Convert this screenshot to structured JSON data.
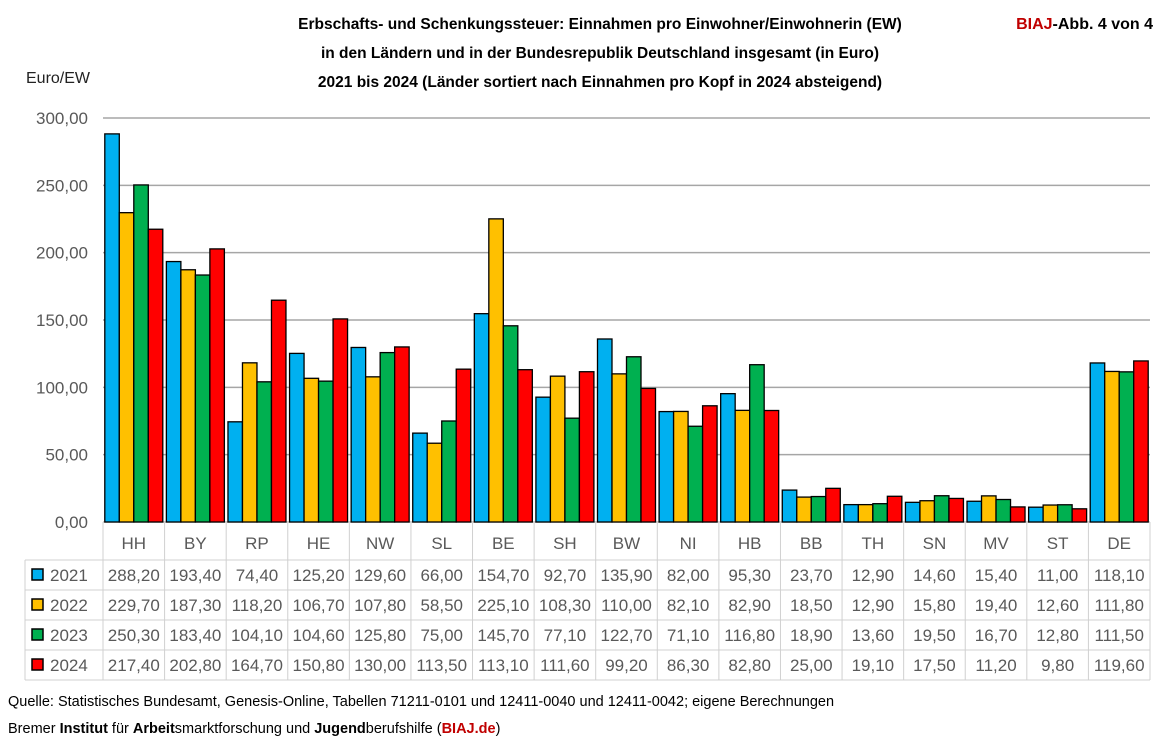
{
  "badge": {
    "brand": "BIAJ",
    "rest": "-Abb. 4 von 4"
  },
  "chart_data": {
    "type": "bar",
    "title": [
      "Erbschafts- und Schenkungssteuer: Einnahmen pro Einwohner/Einwohnerin (EW)",
      "in den Ländern und in der Bundesrepublik Deutschland insgesamt (in Euro)",
      "2021 bis 2024 (Länder sortiert nach Einnahmen pro Kopf in 2024 absteigend)"
    ],
    "ylabel": "Euro/EW",
    "ylim": [
      0,
      300
    ],
    "yticks": [
      "0,00",
      "50,00",
      "100,00",
      "150,00",
      "200,00",
      "250,00",
      "300,00"
    ],
    "grid": true,
    "legend": "data-table",
    "categories": [
      "HH",
      "BY",
      "RP",
      "HE",
      "NW",
      "SL",
      "BE",
      "SH",
      "BW",
      "NI",
      "HB",
      "BB",
      "TH",
      "SN",
      "MV",
      "ST",
      "DE"
    ],
    "series": [
      {
        "name": "2021",
        "color": "#00B0F0",
        "values": [
          288.2,
          193.4,
          74.4,
          125.2,
          129.6,
          66.0,
          154.7,
          92.7,
          135.9,
          82.0,
          95.3,
          23.7,
          12.9,
          14.6,
          15.4,
          11.0,
          118.1
        ]
      },
      {
        "name": "2022",
        "color": "#FFC000",
        "values": [
          229.7,
          187.3,
          118.2,
          106.7,
          107.8,
          58.5,
          225.1,
          108.3,
          110.0,
          82.1,
          82.9,
          18.5,
          12.9,
          15.8,
          19.4,
          12.6,
          111.8
        ]
      },
      {
        "name": "2023",
        "color": "#00B050",
        "values": [
          250.3,
          183.4,
          104.1,
          104.6,
          125.8,
          75.0,
          145.7,
          77.1,
          122.7,
          71.1,
          116.8,
          18.9,
          13.6,
          19.5,
          16.7,
          12.8,
          111.5
        ]
      },
      {
        "name": "2024",
        "color": "#FF0000",
        "values": [
          217.4,
          202.8,
          164.7,
          150.8,
          130.0,
          113.5,
          113.1,
          111.6,
          99.2,
          86.3,
          82.8,
          25.0,
          19.1,
          17.5,
          11.2,
          9.8,
          119.6
        ]
      }
    ]
  },
  "source": {
    "line1": "Quelle: Statistisches Bundesamt, Genesis-Online, Tabellen 71211-0101 und 12411-0040 und 12411-0042; eigene Berechnungen",
    "line2_parts": [
      {
        "t": "Bremer ",
        "b": false
      },
      {
        "t": "Institut",
        "b": true
      },
      {
        "t": " für ",
        "b": false
      },
      {
        "t": "Arbeit",
        "b": true
      },
      {
        "t": "smarktforschung und ",
        "b": false
      },
      {
        "t": "Jugend",
        "b": true
      },
      {
        "t": "berufshilfe (",
        "b": false
      },
      {
        "t": "BIAJ.de",
        "b": true,
        "red": true
      },
      {
        "t": ")",
        "b": false
      }
    ]
  }
}
